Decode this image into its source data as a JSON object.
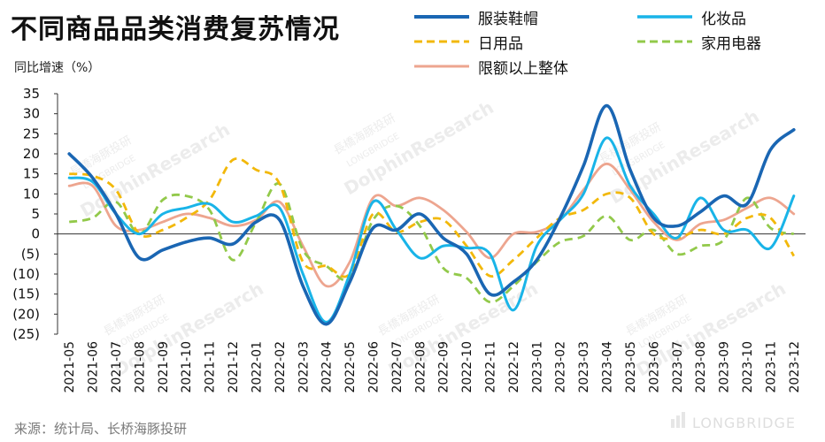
{
  "chart_data": {
    "type": "line",
    "title": "不同商品品类消费复苏情况",
    "ylabel": "同比增速（%）",
    "ylim": [
      -25,
      35
    ],
    "yticks": [
      35,
      30,
      25,
      20,
      15,
      10,
      5,
      0,
      -5,
      -10,
      -15,
      -20,
      -25
    ],
    "ytick_labels": [
      "35",
      "30",
      "25",
      "20",
      "15",
      "10",
      "5",
      "0",
      "(5)",
      "(10)",
      "(15)",
      "(20)",
      "(25)"
    ],
    "categories": [
      "2021-05",
      "2021-06",
      "2021-07",
      "2021-08",
      "2021-09",
      "2021-10",
      "2021-11",
      "2021-12",
      "2022-01",
      "2022-02",
      "2022-03",
      "2022-04",
      "2022-05",
      "2022-06",
      "2022-07",
      "2022-08",
      "2022-09",
      "2022-10",
      "2022-11",
      "2022-12",
      "2023-01",
      "2023-02",
      "2023-03",
      "2023-04",
      "2023-05",
      "2023-06",
      "2023-07",
      "2023-08",
      "2023-09",
      "2023-10",
      "2023-11",
      "2023-12"
    ],
    "series": [
      {
        "name": "服装鞋帽",
        "color": "#1a66b3",
        "dash": "solid",
        "width": 3.6,
        "values": [
          20,
          14,
          5,
          -6,
          -4,
          -2,
          -1,
          -2.5,
          3,
          3.5,
          -13,
          -22.5,
          -12,
          1.5,
          1,
          5,
          -1,
          -5,
          -15,
          -12,
          -6.5,
          4,
          17,
          32,
          16,
          4,
          2,
          5.5,
          9.5,
          7.5,
          21,
          26
        ]
      },
      {
        "name": "化妆品",
        "color": "#19b4e8",
        "dash": "solid",
        "width": 3,
        "values": [
          14,
          13,
          5,
          0,
          5,
          6.5,
          7.5,
          3,
          4.5,
          6.5,
          -10,
          -22,
          -10,
          8,
          1,
          -6,
          -3,
          -3.5,
          -5,
          -19,
          -3,
          3.5,
          10,
          24,
          12,
          5,
          -1,
          9,
          1,
          1,
          -3.5,
          9.5
        ]
      },
      {
        "name": "日用品",
        "color": "#f2b80a",
        "dash": "dash",
        "width": 2.8,
        "values": [
          15,
          14.5,
          11,
          0,
          1,
          4,
          8.5,
          18.5,
          16,
          12.5,
          -7,
          -8,
          -10,
          5,
          0.5,
          3,
          3.5,
          -3,
          -10.5,
          -6.5,
          -1,
          4,
          6,
          10,
          9,
          0,
          -1,
          1,
          0,
          4,
          4,
          -5.5
        ]
      },
      {
        "name": "家用电器",
        "color": "#92c94a",
        "dash": "dash",
        "width": 2.8,
        "values": [
          3,
          4,
          8,
          0,
          8.5,
          9.5,
          6,
          -6.5,
          3,
          12.5,
          -4,
          -8,
          -11,
          3.5,
          7,
          2,
          -8.5,
          -11,
          -17,
          -13,
          -7,
          -2,
          -0.5,
          4.5,
          -1.5,
          1,
          -5,
          -3,
          -1.5,
          9,
          1.5,
          0
        ]
      },
      {
        "name": "限额以上整体",
        "color": "#eda58f",
        "dash": "solid",
        "width": 2.8,
        "values": [
          12,
          12,
          2,
          1,
          3,
          5,
          4,
          2,
          3.5,
          8,
          -3,
          -13,
          -7,
          9,
          7,
          9,
          6,
          0.5,
          -6,
          0,
          0.5,
          3.5,
          11,
          17.5,
          11,
          3,
          -1.5,
          2.5,
          3.5,
          6.5,
          9,
          5
        ]
      }
    ]
  },
  "legend": {
    "items": [
      "服装鞋帽",
      "化妆品",
      "日用品",
      "家用电器",
      "限额以上整体"
    ]
  },
  "source": "来源：统计局、长桥海豚投研",
  "watermarks": [
    "長橋海豚投研",
    "LONGBRIDGE",
    "DolphinResearch"
  ],
  "footer_logo": "LONGBRIDGE"
}
